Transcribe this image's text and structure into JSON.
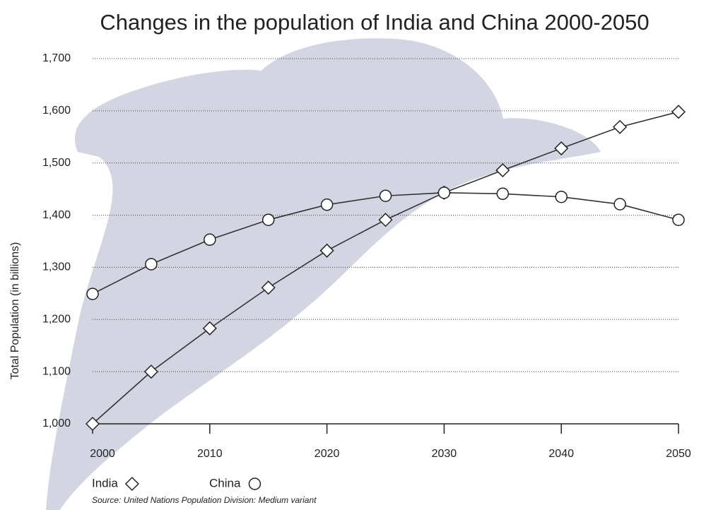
{
  "chart_data": {
    "type": "line",
    "title": "Changes in the population of India and China 2000-2050",
    "y_label": "Total Population (in billions)",
    "source": "Source: United Nations Population Division: Medium variant",
    "x": [
      2000,
      2005,
      2010,
      2015,
      2020,
      2025,
      2030,
      2035,
      2040,
      2045,
      2050
    ],
    "series": [
      {
        "name": "India",
        "color": "#333333",
        "marker": "diamond",
        "values": [
          1000,
          1100,
          1183,
          1261,
          1332,
          1391,
          1443,
          1486,
          1528,
          1569,
          1598
        ]
      },
      {
        "name": "China",
        "color": "#333333",
        "marker": "circle",
        "values": [
          1249,
          1306,
          1353,
          1391,
          1420,
          1437,
          1443,
          1441,
          1435,
          1421,
          1391
        ]
      }
    ],
    "xlim": [
      2000,
      2050
    ],
    "xticks": [
      2000,
      2010,
      2020,
      2030,
      2040,
      2050
    ],
    "ylim": [
      1000,
      1700
    ],
    "yticks": [
      {
        "value": 1000,
        "label": "1,000"
      },
      {
        "value": 1100,
        "label": "1,100"
      },
      {
        "value": 1200,
        "label": "1,200"
      },
      {
        "value": 1300,
        "label": "1,300"
      },
      {
        "value": 1400,
        "label": "1,400"
      },
      {
        "value": 1500,
        "label": "1,500"
      },
      {
        "value": 1600,
        "label": "1,600"
      },
      {
        "value": 1700,
        "label": "1,700"
      }
    ],
    "grid": true,
    "legend": "bottom-left"
  }
}
